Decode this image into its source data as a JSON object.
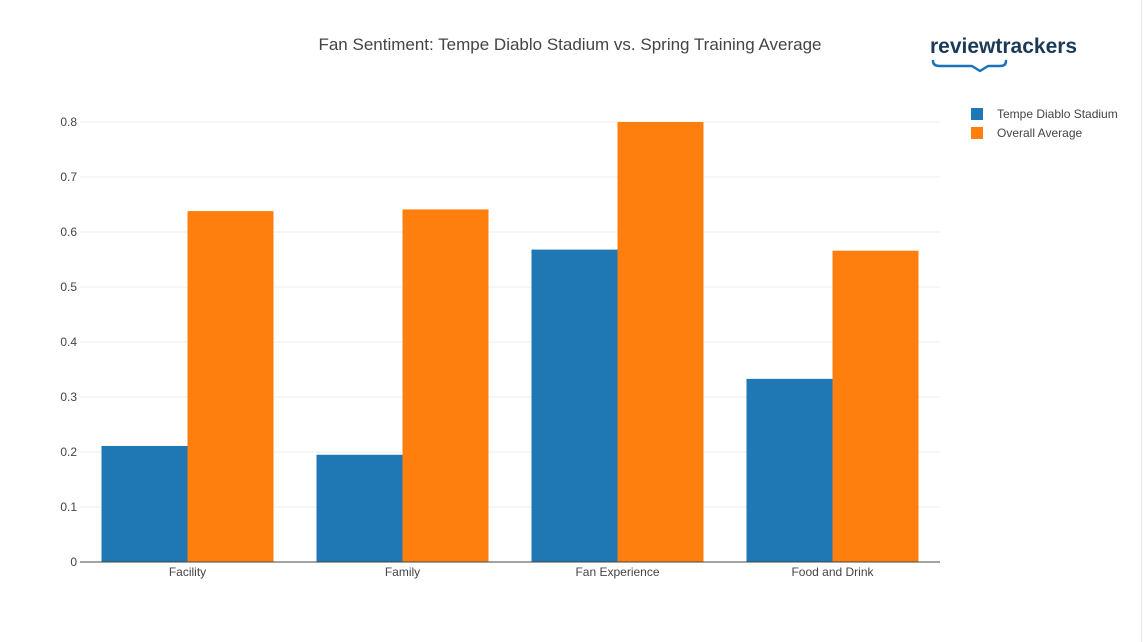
{
  "chart_data": {
    "type": "bar",
    "title": "Fan Sentiment: Tempe Diablo Stadium vs. Spring Training Average",
    "categories": [
      "Facility",
      "Family",
      "Fan Experience",
      "Food and Drink"
    ],
    "series": [
      {
        "name": "Tempe Diablo Stadium",
        "color": "#1f77b4",
        "values": [
          0.211,
          0.195,
          0.568,
          0.333
        ]
      },
      {
        "name": "Overall Average",
        "color": "#ff7f0e",
        "values": [
          0.638,
          0.641,
          0.8,
          0.566
        ]
      }
    ],
    "xlabel": "",
    "ylabel": "",
    "ylim": [
      0,
      0.8
    ],
    "yticks": [
      "0",
      "0.1",
      "0.2",
      "0.3",
      "0.4",
      "0.5",
      "0.6",
      "0.7",
      "0.8"
    ],
    "grid": true,
    "legend_position": "top-right"
  },
  "logo": {
    "text": "reviewtrackers",
    "color": "#1b3a57",
    "accent_color": "#1a73b8"
  }
}
